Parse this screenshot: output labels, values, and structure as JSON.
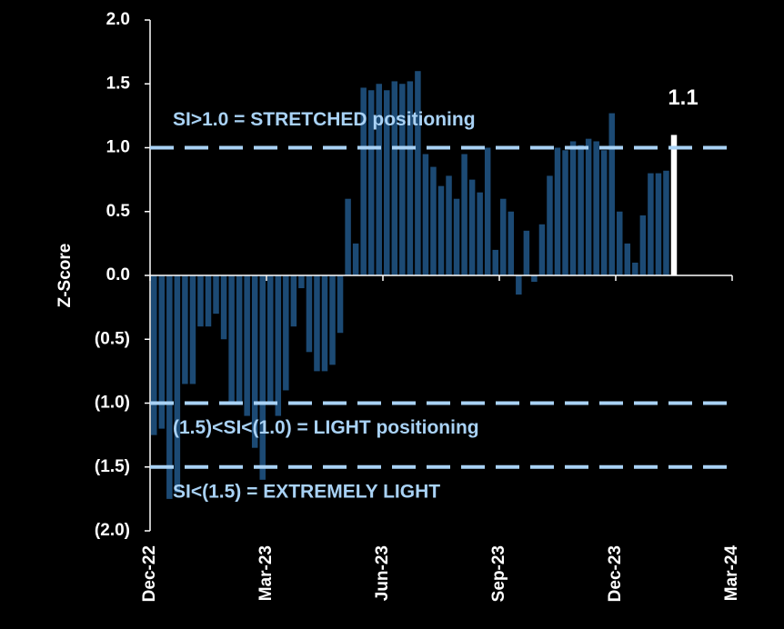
{
  "chart_data": {
    "type": "bar",
    "y_label": "Z-Score",
    "color": "#1c4a74",
    "highlight_color": "#ffffff",
    "x": [
      0.5,
      1.5,
      2.5,
      3.5,
      4.5,
      5.5,
      6.5,
      7.5,
      8.5,
      9.5,
      10.5,
      11.5,
      12.5,
      13.5,
      14.5,
      15.5,
      16.5,
      17.5,
      18.5,
      19.5,
      20.5,
      21.5,
      22.5,
      23.5,
      24.5,
      25.5,
      26.5,
      27.5,
      28.5,
      29.5,
      30.5,
      31.5,
      32.5,
      33.5,
      34.5,
      35.5,
      36.5,
      37.5,
      38.5,
      39.5,
      40.5,
      41.5,
      42.5,
      43.5,
      44.5,
      45.5,
      46.5,
      47.5,
      48.5,
      49.5,
      50.5,
      51.5,
      52.5,
      53.5,
      54.5,
      55.5,
      56.5,
      57.5,
      58.5,
      59.5,
      60.5,
      61.5,
      62.5,
      63.5,
      64.5,
      65.5,
      66.5,
      67.5
    ],
    "values": [
      -1.25,
      -1.2,
      -1.75,
      -1.7,
      -0.85,
      -0.85,
      -0.4,
      -0.4,
      -0.3,
      -0.5,
      -1.0,
      -1.0,
      -1.1,
      -1.35,
      -1.6,
      -1.0,
      -1.1,
      -0.9,
      -0.4,
      -0.1,
      -0.6,
      -0.75,
      -0.75,
      -0.7,
      -0.45,
      0.6,
      0.25,
      1.47,
      1.45,
      1.5,
      1.45,
      1.52,
      1.5,
      1.52,
      1.6,
      0.95,
      0.85,
      0.7,
      0.78,
      0.6,
      0.95,
      0.75,
      0.65,
      1.0,
      0.2,
      0.6,
      0.5,
      -0.15,
      0.35,
      -0.05,
      0.4,
      0.78,
      1.0,
      0.98,
      1.05,
      1.02,
      1.07,
      1.05,
      0.98,
      1.27,
      0.5,
      0.25,
      0.1,
      0.47,
      0.8,
      0.8,
      0.82,
      1.1
    ],
    "value_labels": [
      null,
      null,
      null,
      null,
      null,
      null,
      null,
      null,
      null,
      null,
      null,
      null,
      null,
      null,
      null,
      null,
      null,
      null,
      null,
      null,
      null,
      null,
      null,
      null,
      null,
      null,
      null,
      null,
      null,
      null,
      null,
      null,
      null,
      null,
      null,
      null,
      null,
      null,
      null,
      null,
      null,
      null,
      null,
      null,
      null,
      null,
      null,
      null,
      null,
      null,
      null,
      null,
      null,
      null,
      null,
      null,
      null,
      null,
      null,
      null,
      null,
      null,
      null,
      null,
      null,
      null,
      null,
      "1.1"
    ],
    "xlim": [
      0,
      75
    ],
    "xticks": [
      {
        "value": 0,
        "label": "Dec-22"
      },
      {
        "value": 15,
        "label": "Mar-23"
      },
      {
        "value": 30,
        "label": "Jun-23"
      },
      {
        "value": 45,
        "label": "Sep-23"
      },
      {
        "value": 60,
        "label": "Dec-23"
      },
      {
        "value": 75,
        "label": "Mar-24"
      }
    ],
    "ylim": [
      -2,
      2
    ],
    "yticks": [
      {
        "value": -2,
        "label": "(2.0)"
      },
      {
        "value": -1.5,
        "label": "(1.5)"
      },
      {
        "value": -1,
        "label": "(1.0)"
      },
      {
        "value": -0.5,
        "label": "(0.5)"
      },
      {
        "value": 0,
        "label": "0.0"
      },
      {
        "value": 0.5,
        "label": "0.5"
      },
      {
        "value": 1,
        "label": "1.0"
      },
      {
        "value": 1.5,
        "label": "1.5"
      },
      {
        "value": 2,
        "label": "2.0"
      }
    ],
    "reference_lines": [
      {
        "value": 1.0,
        "label": "SI>1.0 = STRETCHED positioning",
        "label_side": "above"
      },
      {
        "value": -1.0,
        "label": "(1.5)<SI<(1.0) = LIGHT positioning",
        "label_side": "below"
      },
      {
        "value": -1.5,
        "label": "SI<(1.5) = EXTREMELY LIGHT",
        "label_side": "below"
      }
    ],
    "reference_color": "#a9d2f5"
  }
}
